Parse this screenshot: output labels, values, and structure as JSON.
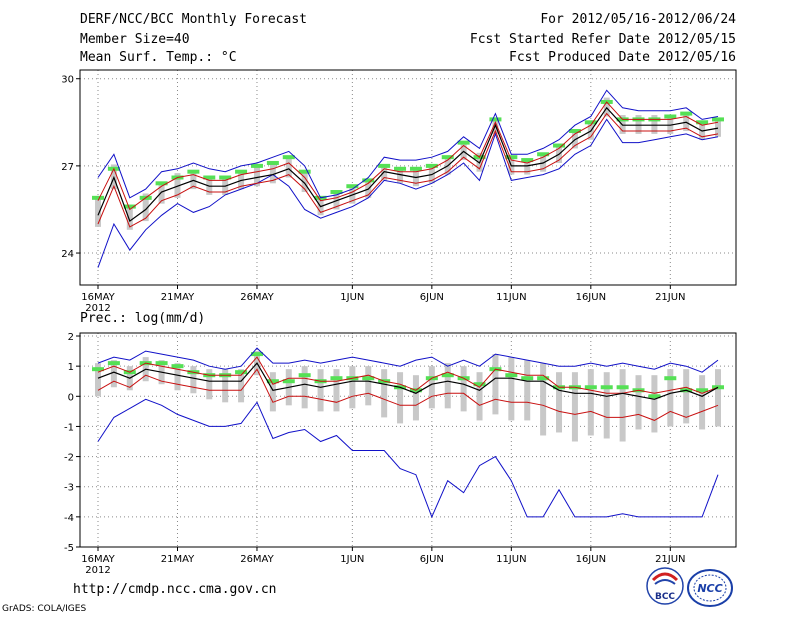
{
  "header": {
    "title": "DERF/NCC/BCC Monthly Forecast",
    "member_size": "Member Size=40",
    "variable": "Mean Surf. Temp.: °C",
    "period": "For 2012/05/16-2012/06/24",
    "started": "Fcst Started Refer Date 2012/05/15",
    "produced": "Fcst Produced Date 2012/05/16"
  },
  "footer": {
    "url": "http://cmdp.ncc.cma.gov.cn",
    "credit": "GrADS: COLA/IGES",
    "logo_left_text": "BCC",
    "logo_right_text": "NCC"
  },
  "colors": {
    "max_min": "#1010c8",
    "upper_lower": "#c81010",
    "mean": "#000000",
    "climatology": "#55e055",
    "spread": "#c8c8c8",
    "grid": "#8a8a8a"
  },
  "chart_data": [
    {
      "type": "line",
      "title": "Mean Surf. Temp.: °C",
      "x": [
        0,
        1,
        2,
        3,
        4,
        5,
        6,
        7,
        8,
        9,
        10,
        11,
        12,
        13,
        14,
        15,
        16,
        17,
        18,
        19,
        20,
        21,
        22,
        23,
        24,
        25,
        26,
        27,
        28,
        29,
        30,
        31,
        32,
        33,
        34,
        35,
        36,
        37,
        38,
        39
      ],
      "xticks": {
        "positions": [
          0,
          5,
          10,
          16,
          21,
          26,
          31,
          36
        ],
        "labels": [
          "16MAY",
          "21MAY",
          "26MAY",
          "1JUN",
          "6JUN",
          "11JUN",
          "16JUN",
          "21JUN"
        ],
        "year": "2012"
      },
      "ylim": [
        22.9,
        30.3
      ],
      "yticks": [
        24,
        27,
        30
      ],
      "series": [
        {
          "name": "max",
          "color": "#1010c8",
          "values": [
            26.6,
            27.4,
            25.9,
            26.2,
            26.8,
            26.9,
            27.1,
            26.9,
            26.8,
            27.0,
            27.1,
            27.3,
            27.5,
            27.0,
            25.9,
            26.0,
            26.2,
            26.6,
            27.3,
            27.2,
            27.2,
            27.3,
            27.5,
            28.0,
            27.6,
            28.8,
            27.4,
            27.4,
            27.6,
            27.9,
            28.4,
            28.7,
            29.6,
            29.0,
            28.9,
            28.9,
            28.9,
            29.0,
            28.6,
            28.7
          ]
        },
        {
          "name": "upper",
          "color": "#c81010",
          "values": [
            25.8,
            26.9,
            25.5,
            25.9,
            26.3,
            26.6,
            26.7,
            26.5,
            26.5,
            26.7,
            26.8,
            26.9,
            27.1,
            26.6,
            25.8,
            25.9,
            26.1,
            26.4,
            26.9,
            26.8,
            26.8,
            26.9,
            27.2,
            27.7,
            27.3,
            28.5,
            27.2,
            27.1,
            27.3,
            27.6,
            28.1,
            28.4,
            29.2,
            28.6,
            28.6,
            28.6,
            28.6,
            28.7,
            28.4,
            28.5
          ]
        },
        {
          "name": "mean",
          "color": "#000000",
          "values": [
            25.3,
            26.6,
            25.1,
            25.5,
            26.1,
            26.3,
            26.5,
            26.3,
            26.3,
            26.5,
            26.6,
            26.7,
            26.9,
            26.4,
            25.6,
            25.8,
            26.0,
            26.2,
            26.8,
            26.7,
            26.6,
            26.7,
            27.0,
            27.5,
            27.1,
            28.4,
            27.0,
            27.0,
            27.1,
            27.4,
            27.9,
            28.2,
            29.0,
            28.4,
            28.4,
            28.4,
            28.4,
            28.5,
            28.2,
            28.3
          ]
        },
        {
          "name": "lower",
          "color": "#c81010",
          "values": [
            25.0,
            26.3,
            24.9,
            25.2,
            25.8,
            26.0,
            26.3,
            26.1,
            26.1,
            26.3,
            26.4,
            26.5,
            26.7,
            26.2,
            25.4,
            25.6,
            25.8,
            26.0,
            26.6,
            26.5,
            26.4,
            26.5,
            26.8,
            27.3,
            26.9,
            28.2,
            26.8,
            26.8,
            26.9,
            27.2,
            27.7,
            28.0,
            28.8,
            28.2,
            28.2,
            28.2,
            28.2,
            28.3,
            28.0,
            28.1
          ]
        },
        {
          "name": "min",
          "color": "#1010c8",
          "values": [
            23.5,
            25.0,
            24.1,
            24.8,
            25.3,
            25.7,
            25.4,
            25.6,
            26.0,
            26.2,
            26.4,
            26.7,
            26.3,
            25.5,
            25.2,
            25.4,
            25.6,
            25.9,
            26.5,
            26.4,
            26.2,
            26.4,
            26.7,
            27.1,
            26.5,
            28.1,
            26.5,
            26.6,
            26.7,
            26.9,
            27.4,
            27.7,
            28.6,
            27.8,
            27.8,
            27.9,
            28.0,
            28.1,
            27.9,
            28.0
          ]
        },
        {
          "name": "climatology",
          "color": "#55e055",
          "values": [
            25.9,
            26.9,
            25.6,
            25.9,
            26.4,
            26.6,
            26.8,
            26.6,
            26.6,
            26.8,
            27.0,
            27.1,
            27.3,
            26.8,
            25.9,
            26.1,
            26.3,
            26.5,
            27.0,
            26.9,
            26.9,
            27.0,
            27.3,
            27.8,
            27.3,
            28.6,
            27.3,
            27.2,
            27.4,
            27.7,
            28.2,
            28.5,
            29.2,
            28.6,
            28.6,
            28.6,
            28.7,
            28.8,
            28.5,
            28.6
          ]
        }
      ]
    },
    {
      "type": "line",
      "title": "Prec.: log(mm/d)",
      "x": [
        0,
        1,
        2,
        3,
        4,
        5,
        6,
        7,
        8,
        9,
        10,
        11,
        12,
        13,
        14,
        15,
        16,
        17,
        18,
        19,
        20,
        21,
        22,
        23,
        24,
        25,
        26,
        27,
        28,
        29,
        30,
        31,
        32,
        33,
        34,
        35,
        36,
        37,
        38,
        39
      ],
      "xticks": {
        "positions": [
          0,
          5,
          10,
          16,
          21,
          26,
          31,
          36
        ],
        "labels": [
          "16MAY",
          "21MAY",
          "26MAY",
          "1JUN",
          "6JUN",
          "11JUN",
          "16JUN",
          "21JUN"
        ],
        "year": "2012"
      },
      "ylim": [
        -5,
        2.1
      ],
      "yticks": [
        -5,
        -4,
        -3,
        -2,
        -1,
        0,
        1,
        2
      ],
      "series": [
        {
          "name": "max",
          "color": "#1010c8",
          "values": [
            1.1,
            1.3,
            1.2,
            1.5,
            1.4,
            1.3,
            1.2,
            1.0,
            0.9,
            1.0,
            1.6,
            1.1,
            1.1,
            1.2,
            1.1,
            1.2,
            1.3,
            1.2,
            1.1,
            1.0,
            1.2,
            1.3,
            1.0,
            1.2,
            1.0,
            1.4,
            1.3,
            1.2,
            1.1,
            1.0,
            1.0,
            1.1,
            1.0,
            1.1,
            1.0,
            0.9,
            1.1,
            1.0,
            0.8,
            1.2
          ]
        },
        {
          "name": "upper",
          "color": "#c81010",
          "values": [
            0.8,
            1.0,
            0.8,
            1.1,
            1.0,
            0.9,
            0.8,
            0.7,
            0.7,
            0.7,
            1.3,
            0.4,
            0.6,
            0.6,
            0.5,
            0.5,
            0.6,
            0.7,
            0.5,
            0.4,
            0.2,
            0.6,
            0.8,
            0.6,
            0.3,
            0.9,
            0.8,
            0.7,
            0.7,
            0.3,
            0.3,
            0.2,
            0.1,
            0.1,
            0.2,
            0.1,
            0.2,
            0.3,
            0.1,
            0.3
          ]
        },
        {
          "name": "mean",
          "color": "#000000",
          "values": [
            0.6,
            0.8,
            0.6,
            0.9,
            0.8,
            0.7,
            0.6,
            0.5,
            0.5,
            0.5,
            1.1,
            0.2,
            0.3,
            0.4,
            0.3,
            0.4,
            0.5,
            0.5,
            0.4,
            0.3,
            0.1,
            0.4,
            0.5,
            0.4,
            0.2,
            0.6,
            0.6,
            0.5,
            0.5,
            0.2,
            0.1,
            0.1,
            0.0,
            0.1,
            0.0,
            -0.1,
            0.1,
            0.2,
            0.0,
            0.3
          ]
        },
        {
          "name": "lower",
          "color": "#c81010",
          "values": [
            0.2,
            0.5,
            0.3,
            0.7,
            0.5,
            0.4,
            0.3,
            0.2,
            0.2,
            0.2,
            0.9,
            -0.2,
            0.0,
            0.0,
            -0.1,
            -0.2,
            0.0,
            0.1,
            -0.1,
            -0.3,
            -0.3,
            0.0,
            0.1,
            0.1,
            -0.3,
            -0.1,
            -0.2,
            -0.2,
            -0.3,
            -0.5,
            -0.6,
            -0.5,
            -0.7,
            -0.7,
            -0.6,
            -0.8,
            -0.5,
            -0.7,
            -0.5,
            -0.3
          ]
        },
        {
          "name": "min",
          "color": "#1010c8",
          "values": [
            -1.5,
            -0.7,
            -0.4,
            -0.1,
            -0.3,
            -0.6,
            -0.8,
            -1.0,
            -1.0,
            -0.9,
            -0.2,
            -1.4,
            -1.2,
            -1.1,
            -1.5,
            -1.3,
            -1.8,
            -1.8,
            -1.8,
            -2.4,
            -2.6,
            -4.0,
            -2.8,
            -3.2,
            -2.3,
            -2.0,
            -2.8,
            -4.0,
            -4.0,
            -3.1,
            -4.0,
            -4.0,
            -4.0,
            -3.9,
            -4.0,
            -4.0,
            -4.0,
            -4.0,
            -4.0,
            -2.6
          ]
        },
        {
          "name": "climatology",
          "color": "#55e055",
          "values": [
            0.9,
            1.1,
            0.8,
            1.1,
            1.1,
            1.0,
            0.8,
            0.7,
            0.7,
            0.8,
            1.4,
            0.5,
            0.5,
            0.7,
            0.5,
            0.6,
            0.6,
            0.6,
            0.5,
            0.3,
            0.2,
            0.6,
            0.7,
            0.6,
            0.4,
            0.9,
            0.7,
            0.6,
            0.6,
            0.3,
            0.3,
            0.3,
            0.3,
            0.3,
            0.2,
            0.0,
            0.6,
            0.2,
            0.2,
            0.3
          ]
        },
        {
          "name": "spread_top",
          "color": "#c8c8c8",
          "values": [
            1.1,
            1.2,
            1.0,
            1.3,
            1.2,
            1.1,
            1.0,
            0.9,
            0.9,
            0.9,
            1.5,
            0.8,
            0.9,
            1.0,
            0.9,
            0.9,
            1.0,
            1.0,
            0.9,
            0.8,
            0.7,
            1.0,
            1.1,
            1.0,
            0.8,
            1.4,
            1.3,
            1.2,
            1.1,
            0.8,
            0.8,
            0.9,
            0.8,
            0.9,
            0.7,
            0.7,
            0.9,
            0.9,
            0.7,
            0.9
          ]
        },
        {
          "name": "spread_bottom",
          "color": "#c8c8c8",
          "values": [
            0.0,
            0.3,
            0.2,
            0.5,
            0.4,
            0.2,
            0.1,
            -0.1,
            -0.2,
            -0.2,
            0.7,
            -0.5,
            -0.3,
            -0.4,
            -0.5,
            -0.5,
            -0.4,
            -0.3,
            -0.7,
            -0.9,
            -0.8,
            -0.4,
            -0.4,
            -0.5,
            -0.8,
            -0.6,
            -0.8,
            -0.8,
            -1.3,
            -1.2,
            -1.5,
            -1.3,
            -1.4,
            -1.5,
            -1.1,
            -1.2,
            -1.0,
            -0.9,
            -1.1,
            -1.0
          ]
        }
      ]
    }
  ]
}
